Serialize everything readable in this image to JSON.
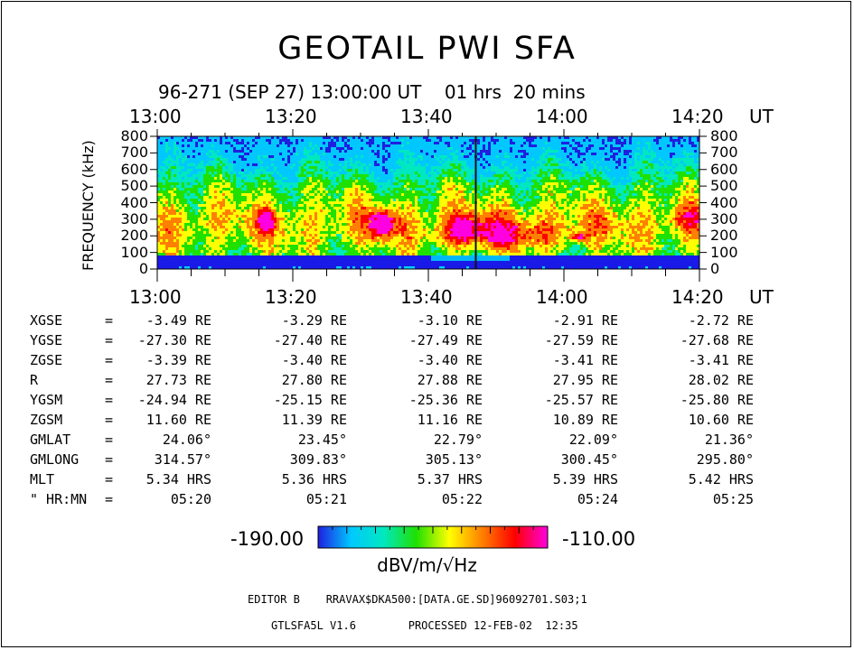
{
  "title": "GEOTAIL PWI SFA",
  "subtitle": "96-271 (SEP 27) 13:00:00 UT    01 hrs  20 mins",
  "axis_unit": "UT",
  "chart_data": {
    "type": "heatmap",
    "title": "GEOTAIL PWI SFA",
    "xlabel": "UT",
    "ylabel": "FREQUENCY (kHz)",
    "x_ticks": [
      "13:00",
      "13:20",
      "13:40",
      "14:00",
      "14:20"
    ],
    "x_range_minutes": [
      0,
      80
    ],
    "y_ticks": [
      800,
      700,
      600,
      500,
      400,
      300,
      200,
      100,
      0
    ],
    "ylim": [
      0,
      800
    ],
    "colorbar": {
      "min_label": "-190.00",
      "max_label": "-110.00",
      "min": -190,
      "max": -110,
      "unit": "dBV/m/√Hz",
      "colors": [
        "#1f1fe0",
        "#00c8ff",
        "#00e8c0",
        "#20e000",
        "#ffff00",
        "#ff8000",
        "#ff0000",
        "#ff00e0"
      ]
    },
    "features": [
      {
        "desc": "red burst",
        "t_min": 33,
        "f_khz": [
          170,
          380
        ]
      },
      {
        "desc": "red burst",
        "t_min": 16,
        "f_khz": [
          240,
          360
        ]
      },
      {
        "desc": "yellow band",
        "t_range": [
          40,
          60
        ],
        "f_khz": [
          100,
          300
        ]
      },
      {
        "desc": "red spot",
        "t_min": 62,
        "f_khz": [
          180,
          220
        ]
      }
    ]
  },
  "ephemeris": {
    "rows": [
      {
        "label": "XGSE",
        "eq": "=",
        "values": [
          "-3.49 RE",
          "-3.29 RE",
          "-3.10 RE",
          "-2.91 RE",
          "-2.72 RE"
        ]
      },
      {
        "label": "YGSE",
        "eq": "=",
        "values": [
          "-27.30 RE",
          "-27.40 RE",
          "-27.49 RE",
          "-27.59 RE",
          "-27.68 RE"
        ]
      },
      {
        "label": "ZGSE",
        "eq": "=",
        "values": [
          "-3.39 RE",
          "-3.40 RE",
          "-3.40 RE",
          "-3.41 RE",
          "-3.41 RE"
        ]
      },
      {
        "label": "R",
        "eq": "=",
        "values": [
          "27.73 RE",
          "27.80 RE",
          "27.88 RE",
          "27.95 RE",
          "28.02 RE"
        ]
      },
      {
        "label": "YGSM",
        "eq": "=",
        "values": [
          "-24.94 RE",
          "-25.15 RE",
          "-25.36 RE",
          "-25.57 RE",
          "-25.80 RE"
        ]
      },
      {
        "label": "ZGSM",
        "eq": "=",
        "values": [
          "11.60 RE",
          "11.39 RE",
          "11.16 RE",
          "10.89 RE",
          "10.60 RE"
        ]
      },
      {
        "label": "GMLAT",
        "eq": "=",
        "values": [
          "24.06°",
          "23.45°",
          "22.79°",
          "22.09°",
          "21.36°"
        ]
      },
      {
        "label": "GMLONG",
        "eq": "=",
        "values": [
          "314.57°",
          "309.83°",
          "305.13°",
          "300.45°",
          "295.80°"
        ]
      },
      {
        "label": "MLT",
        "eq": "=",
        "values": [
          "5.34 HRS",
          "5.36 HRS",
          "5.37 HRS",
          "5.39 HRS",
          "5.42 HRS"
        ]
      },
      {
        "label": "\" HR:MN",
        "eq": "=",
        "values": [
          "05:20",
          "05:21",
          "05:22",
          "05:24",
          "05:25"
        ]
      }
    ]
  },
  "footer": {
    "editor": "EDITOR B    RRAVAX$DKA500:[DATA.GE.SD]96092701.S03;1",
    "processed": "GTLSFA5L V1.6        PROCESSED 12-FEB-02  12:35"
  }
}
